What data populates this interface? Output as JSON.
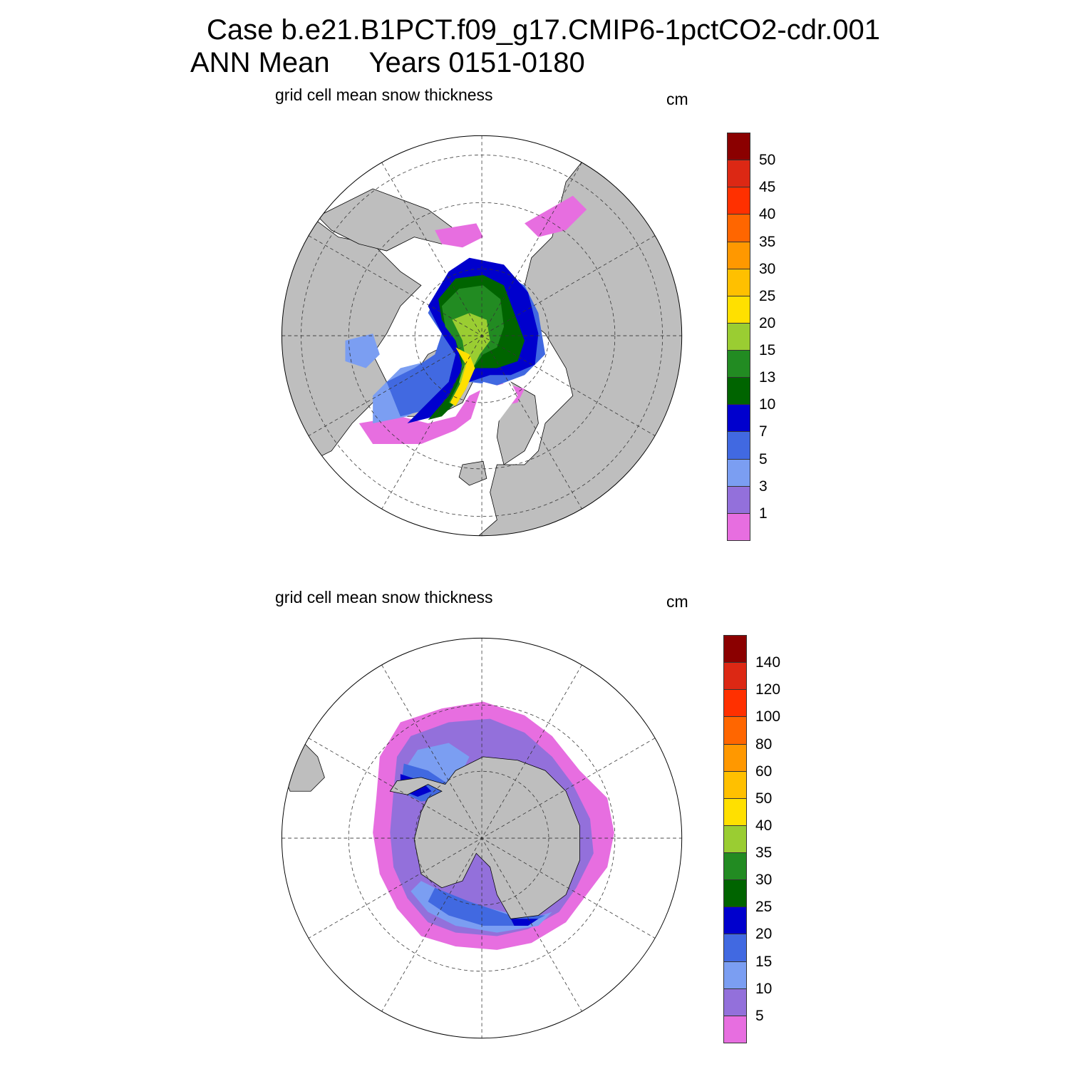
{
  "header": {
    "line1": "Case b.e21.B1PCT.f09_g17.CMIP6-1pctCO2-cdr.001",
    "line2": "ANN Mean     Years 0151-0180"
  },
  "panels": [
    {
      "title": "grid cell mean snow thickness",
      "unit": "cm",
      "hemisphere": "north",
      "colorbar": {
        "colors": [
          "#E76EE0",
          "#9370DB",
          "#7B9EF2",
          "#4169E1",
          "#0000CD",
          "#006400",
          "#228B22",
          "#9ACD32",
          "#FFE000",
          "#FFC000",
          "#FF9800",
          "#FF6600",
          "#FF3000",
          "#DC2814",
          "#8B0000"
        ],
        "labels": [
          "1",
          "3",
          "5",
          "7",
          "10",
          "13",
          "15",
          "20",
          "25",
          "30",
          "35",
          "40",
          "45",
          "50"
        ]
      }
    },
    {
      "title": "grid cell mean snow thickness",
      "unit": "cm",
      "hemisphere": "south",
      "colorbar": {
        "colors": [
          "#E76EE0",
          "#9370DB",
          "#7B9EF2",
          "#4169E1",
          "#0000CD",
          "#006400",
          "#228B22",
          "#9ACD32",
          "#FFE000",
          "#FFC000",
          "#FF9800",
          "#FF6600",
          "#FF3000",
          "#DC2814",
          "#8B0000"
        ],
        "labels": [
          "5",
          "10",
          "15",
          "20",
          "25",
          "30",
          "35",
          "40",
          "50",
          "60",
          "80",
          "100",
          "120",
          "140"
        ]
      }
    }
  ]
}
